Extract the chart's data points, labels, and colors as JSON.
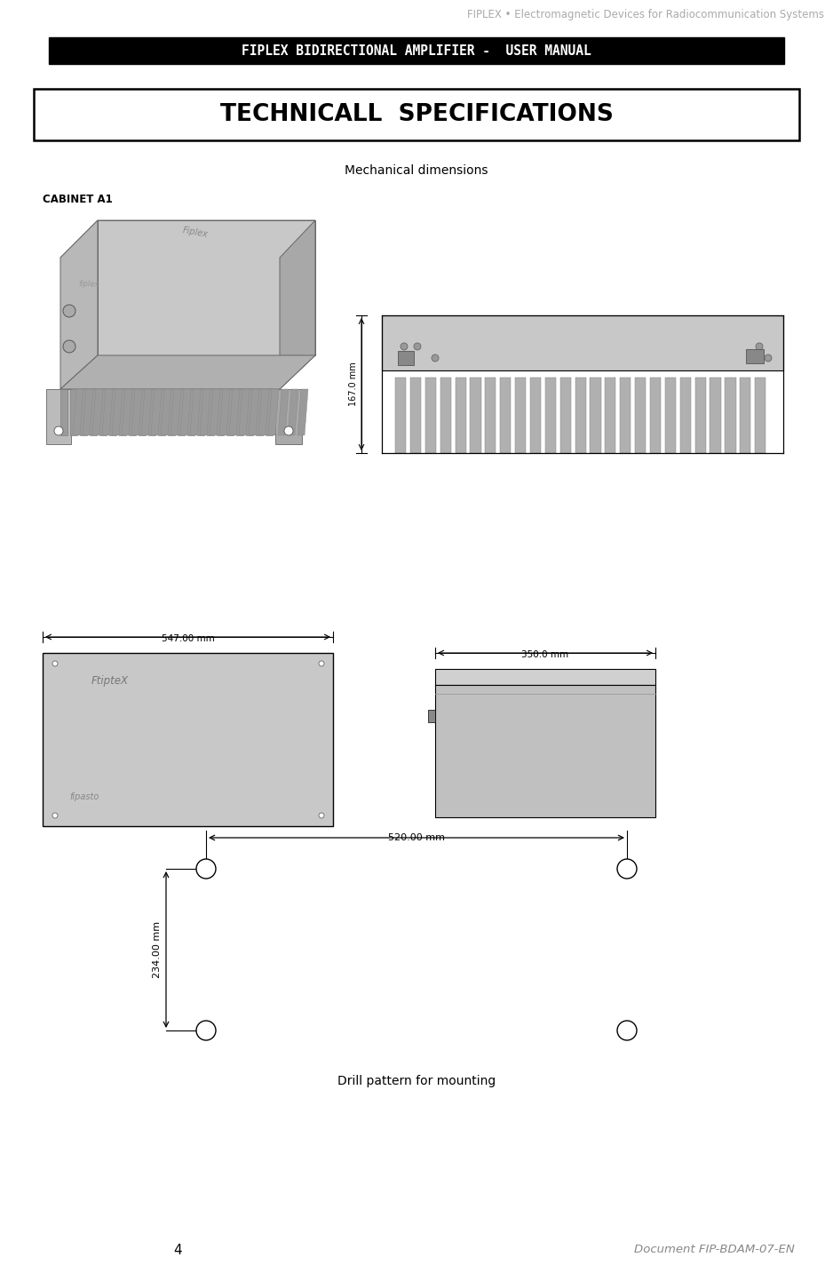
{
  "page_width": 9.38,
  "page_height": 14.33,
  "bg_color": "#ffffff",
  "header_text": "FIPLEX • Electromagnetic Devices for Radiocommunication Systems",
  "header_color": "#aaaaaa",
  "header_fontsize": 8.5,
  "banner_text": "FIPLEX BIDIRECTIONAL AMPLIFIER -  USER MANUAL",
  "banner_bg": "#000000",
  "banner_fg": "#ffffff",
  "banner_fontsize": 10.5,
  "section_title": "TECHNICALL  SPECIFICATIONS",
  "section_title_fontsize": 19,
  "subtitle": "Mechanical dimensions",
  "subtitle_fontsize": 10,
  "cabinet_label": "CABINET A1",
  "cabinet_label_fontsize": 8.5,
  "dim_547": "547.00 mm",
  "dim_350": "350.0 mm",
  "dim_167": "167.0 mm",
  "dim_520": "520.00 mm",
  "dim_234": "234.00 mm",
  "caption": "Drill pattern for mounting",
  "caption_fontsize": 10,
  "page_num": "4",
  "doc_ref": "Document FIP-BDAM-07-EN",
  "doc_ref_fontsize": 9.5,
  "gray_light": "#cccccc",
  "gray_mid": "#b0b0b0",
  "gray_dark": "#888888",
  "line_color": "#000000"
}
